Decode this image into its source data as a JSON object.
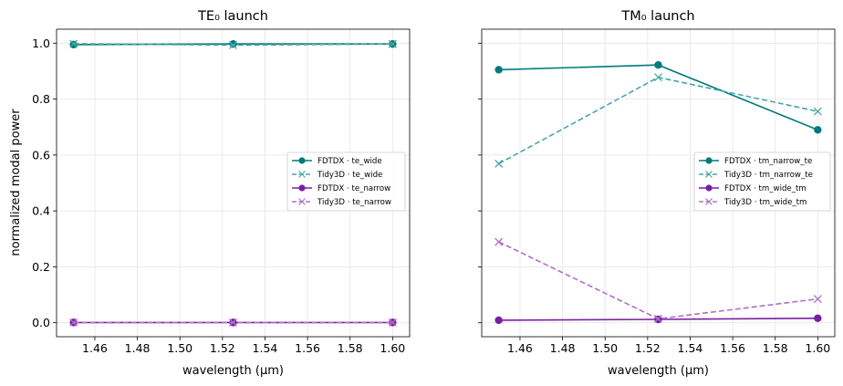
{
  "figure": {
    "ylabel": "normalized modal power"
  },
  "chart_data": [
    {
      "type": "line",
      "title": "TE₀ launch",
      "xlabel": "wavelength (µm)",
      "ylabel": "normalized modal power",
      "xlim": [
        1.442,
        1.608
      ],
      "ylim": [
        -0.05,
        1.05
      ],
      "xticks": [
        "1.46",
        "1.48",
        "1.50",
        "1.52",
        "1.54",
        "1.56",
        "1.58",
        "1.60"
      ],
      "yticks": [
        "0.0",
        "0.2",
        "0.4",
        "0.6",
        "0.8",
        "1.0"
      ],
      "grid": true,
      "legend_position": "center-right",
      "x": [
        1.45,
        1.525,
        1.6
      ],
      "series": [
        {
          "name": "FDTDX · te_wide",
          "values": [
            0.995,
            0.997,
            0.997
          ],
          "color": "#007a7a",
          "style": "solid",
          "marker": "circle"
        },
        {
          "name": "Tidy3D · te_wide",
          "values": [
            0.998,
            0.993,
            0.997
          ],
          "color": "#4aa6a6",
          "style": "dashed",
          "marker": "x"
        },
        {
          "name": "FDTDX · te_narrow",
          "values": [
            0.001,
            0.001,
            0.001
          ],
          "color": "#7a1fa2",
          "style": "solid",
          "marker": "circle"
        },
        {
          "name": "Tidy3D · te_narrow",
          "values": [
            0.001,
            0.001,
            0.001
          ],
          "color": "#b070c8",
          "style": "dashed",
          "marker": "x"
        }
      ]
    },
    {
      "type": "line",
      "title": "TM₀ launch",
      "xlabel": "wavelength (µm)",
      "xlim": [
        1.442,
        1.608
      ],
      "ylim": [
        -0.05,
        1.05
      ],
      "xticks": [
        "1.46",
        "1.48",
        "1.50",
        "1.52",
        "1.54",
        "1.56",
        "1.58",
        "1.60"
      ],
      "grid": true,
      "legend_position": "center-right",
      "x": [
        1.45,
        1.525,
        1.6
      ],
      "series": [
        {
          "name": "FDTDX · tm_narrow_te",
          "values": [
            0.905,
            0.922,
            0.69
          ],
          "color": "#007a7a",
          "style": "solid",
          "marker": "circle"
        },
        {
          "name": "Tidy3D · tm_narrow_te",
          "values": [
            0.569,
            0.878,
            0.756
          ],
          "color": "#4aa6a6",
          "style": "dashed",
          "marker": "x"
        },
        {
          "name": "FDTDX · tm_wide_tm",
          "values": [
            0.009,
            0.012,
            0.016
          ],
          "color": "#7a1fa2",
          "style": "solid",
          "marker": "circle"
        },
        {
          "name": "Tidy3D · tm_wide_tm",
          "values": [
            0.289,
            0.014,
            0.085
          ],
          "color": "#b070c8",
          "style": "dashed",
          "marker": "x"
        }
      ]
    }
  ]
}
